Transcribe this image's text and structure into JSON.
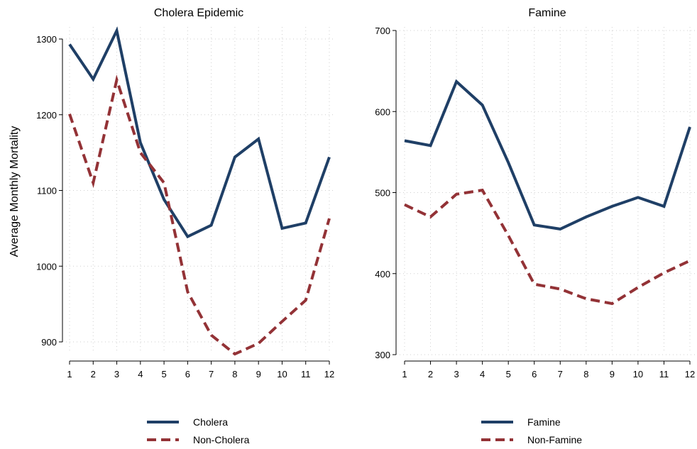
{
  "chart_data": [
    {
      "type": "line",
      "title": "Cholera Epidemic",
      "xlabel": "",
      "ylabel": "Average Monthly Mortality",
      "x": [
        1,
        2,
        3,
        4,
        5,
        6,
        7,
        8,
        9,
        10,
        11,
        12
      ],
      "xticks": [
        "1",
        "2",
        "3",
        "4",
        "5",
        "6",
        "7",
        "8",
        "9",
        "10",
        "11",
        "12"
      ],
      "ylim": [
        880,
        1310
      ],
      "yticks": [
        900,
        1000,
        1100,
        1200,
        1300
      ],
      "grid": true,
      "legend_position": "bottom",
      "series": [
        {
          "name": "Cholera",
          "color": "#1f3f66",
          "style": "solid",
          "values": [
            1293,
            1247,
            1311,
            1163,
            1088,
            1039,
            1054,
            1144,
            1168,
            1050,
            1057,
            1144
          ]
        },
        {
          "name": "Non-Cholera",
          "color": "#933236",
          "style": "dashed",
          "values": [
            1201,
            1110,
            1246,
            1150,
            1110,
            966,
            909,
            884,
            898,
            927,
            955,
            1063
          ]
        }
      ]
    },
    {
      "type": "line",
      "title": "Famine",
      "xlabel": "",
      "ylabel": "",
      "x": [
        1,
        2,
        3,
        4,
        5,
        6,
        7,
        8,
        9,
        10,
        11,
        12
      ],
      "xticks": [
        "1",
        "2",
        "3",
        "4",
        "5",
        "6",
        "7",
        "8",
        "9",
        "10",
        "11",
        "12"
      ],
      "ylim": [
        300,
        700
      ],
      "yticks": [
        300,
        400,
        500,
        600,
        700
      ],
      "grid": true,
      "legend_position": "bottom",
      "series": [
        {
          "name": "Famine",
          "color": "#1f3f66",
          "style": "solid",
          "values": [
            564,
            558,
            637,
            608,
            537,
            460,
            455,
            470,
            483,
            494,
            483,
            581
          ]
        },
        {
          "name": "Non-Famine",
          "color": "#933236",
          "style": "dashed",
          "values": [
            485,
            470,
            498,
            503,
            447,
            387,
            381,
            369,
            363,
            383,
            401,
            416
          ]
        }
      ]
    }
  ]
}
